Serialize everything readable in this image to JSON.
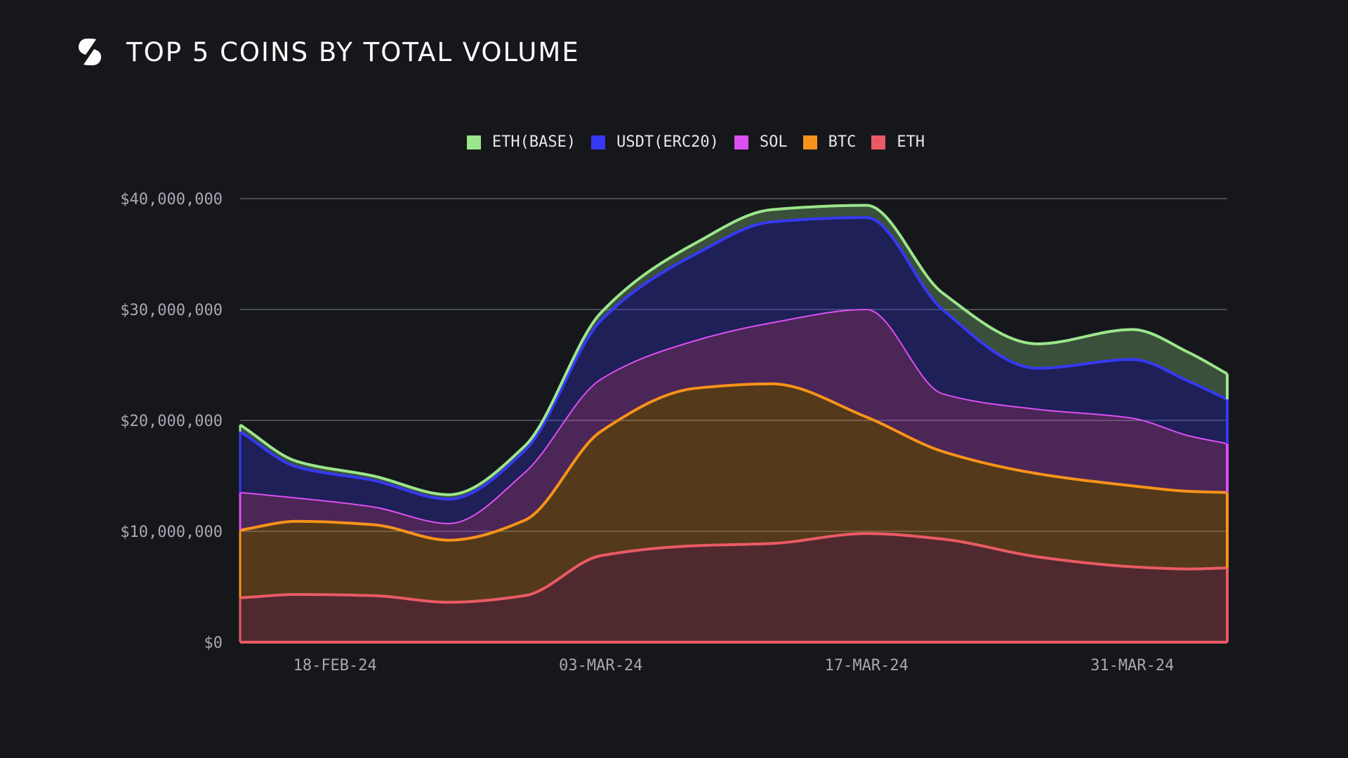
{
  "header": {
    "title": "TOP 5 COINS BY TOTAL VOLUME",
    "logo_icon": "s-slash-logo-icon"
  },
  "chart_data": {
    "type": "area",
    "stacked": true,
    "title": "TOP 5 COINS BY TOTAL VOLUME",
    "xlabel": "",
    "ylabel": "",
    "ylim": [
      0,
      40000000
    ],
    "yticks": [
      0,
      10000000,
      20000000,
      30000000,
      40000000
    ],
    "ytick_labels": [
      "$0",
      "$10,000,000",
      "$20,000,000",
      "$30,000,000",
      "$40,000,000"
    ],
    "xtick_labels": [
      "18-FEB-24",
      "03-MAR-24",
      "17-MAR-24",
      "31-MAR-24"
    ],
    "x": [
      "2024-02-13",
      "2024-02-16",
      "2024-02-20",
      "2024-02-24",
      "2024-02-28",
      "2024-03-03",
      "2024-03-08",
      "2024-03-12",
      "2024-03-17",
      "2024-03-21",
      "2024-03-26",
      "2024-03-31",
      "2024-04-03",
      "2024-04-05"
    ],
    "grid": true,
    "legend_position": "top-center",
    "background": "#16171b",
    "series": [
      {
        "name": "ETH",
        "color": "#ea5a65",
        "values": [
          4000000,
          4300000,
          4200000,
          3600000,
          4200000,
          7800000,
          8700000,
          8900000,
          9800000,
          9300000,
          7700000,
          6800000,
          6600000,
          6700000
        ]
      },
      {
        "name": "BTC",
        "color": "#f7931a",
        "values": [
          6100000,
          6600000,
          6400000,
          5600000,
          6800000,
          11200000,
          14200000,
          14400000,
          10500000,
          7900000,
          7500000,
          7300000,
          7000000,
          6800000
        ]
      },
      {
        "name": "SOL",
        "color": "#dc4ff3",
        "values": [
          3400000,
          2100000,
          1600000,
          1500000,
          4300000,
          4700000,
          4300000,
          5500000,
          9700000,
          5200000,
          5800000,
          6100000,
          5000000,
          4400000
        ]
      },
      {
        "name": "USDT(ERC20)",
        "color": "#3639f4",
        "values": [
          5500000,
          2800000,
          2400000,
          2200000,
          2000000,
          5300000,
          7800000,
          9100000,
          8300000,
          7600000,
          3700000,
          5300000,
          4900000,
          4000000
        ]
      },
      {
        "name": "ETH(BASE)",
        "color": "#9be68c",
        "values": [
          600000,
          500000,
          400000,
          400000,
          400000,
          700000,
          1000000,
          1100000,
          1100000,
          1500000,
          2200000,
          2700000,
          2600000,
          2300000
        ]
      }
    ]
  }
}
